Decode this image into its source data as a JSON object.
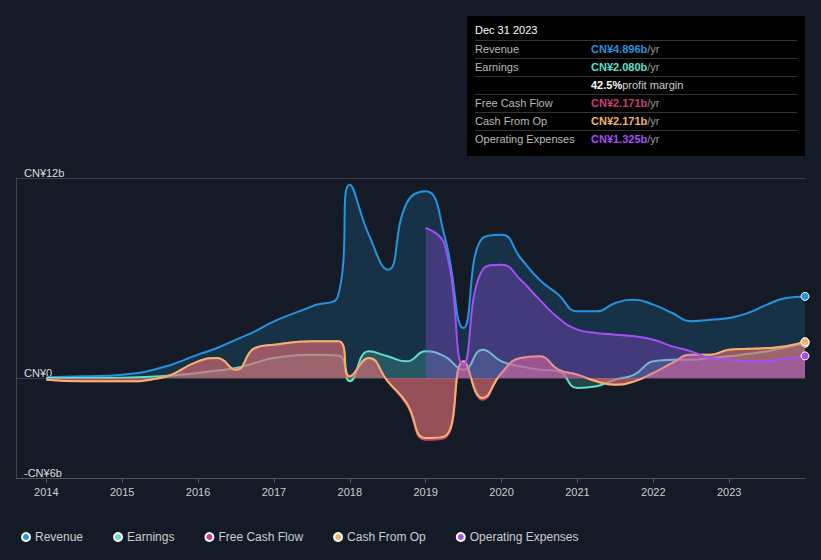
{
  "chart_data": {
    "type": "line",
    "x": [
      2014,
      2014.5,
      2015,
      2015.5,
      2016,
      2016.25,
      2016.5,
      2016.75,
      2017,
      2017.5,
      2017.85,
      2018,
      2018.25,
      2018.5,
      2018.75,
      2019,
      2019.25,
      2019.5,
      2019.75,
      2020,
      2020.25,
      2020.5,
      2020.75,
      2021,
      2021.25,
      2021.5,
      2021.75,
      2022,
      2022.25,
      2022.5,
      2022.75,
      2023,
      2023.25,
      2023.5,
      2023.75,
      2024
    ],
    "series": [
      {
        "name": "Revenue",
        "color": "#2394df",
        "values": [
          0.05,
          0.1,
          0.2,
          0.6,
          1.4,
          1.8,
          2.3,
          2.8,
          3.4,
          4.3,
          5.0,
          11.6,
          8.6,
          6.5,
          10.5,
          11.2,
          8.5,
          3.0,
          8.4,
          8.6,
          7.2,
          5.9,
          5.0,
          4.0,
          4.0,
          4.5,
          4.7,
          4.4,
          3.9,
          3.4,
          3.5,
          3.6,
          3.9,
          4.4,
          4.8,
          4.896
        ]
      },
      {
        "name": "Earnings",
        "color": "#5fe0c8",
        "values": [
          0,
          0,
          0.02,
          0.1,
          0.3,
          0.45,
          0.6,
          0.9,
          1.2,
          1.4,
          1.35,
          -0.2,
          1.6,
          1.3,
          1.0,
          1.6,
          1.3,
          0.5,
          1.7,
          1.0,
          0.7,
          0.5,
          0.4,
          -0.6,
          -0.5,
          -0.1,
          0.2,
          1.0,
          1.1,
          1.1,
          1.2,
          1.3,
          1.45,
          1.6,
          1.85,
          2.08
        ]
      },
      {
        "name": "Free Cash Flow",
        "color": "#c93f79",
        "values": [
          -0.1,
          -0.2,
          -0.2,
          0.0,
          1.0,
          1.2,
          0.5,
          1.8,
          2.0,
          2.2,
          2.2,
          0.1,
          1.2,
          -0.2,
          -1.6,
          -3.7,
          -3.6,
          1.0,
          -1.3,
          0.3,
          1.2,
          1.3,
          0.5,
          0.2,
          -0.2,
          -0.4,
          -0.2,
          0.3,
          0.9,
          1.4,
          1.4,
          1.7,
          1.75,
          1.8,
          1.9,
          2.171
        ]
      },
      {
        "name": "Cash From Op",
        "color": "#f2b46a",
        "values": [
          -0.1,
          -0.2,
          -0.2,
          0.0,
          1.0,
          1.2,
          0.5,
          1.8,
          2.0,
          2.2,
          2.2,
          0.1,
          1.2,
          -0.2,
          -1.5,
          -3.6,
          -3.5,
          1.0,
          -1.2,
          0.3,
          1.2,
          1.3,
          0.5,
          0.2,
          -0.2,
          -0.4,
          -0.2,
          0.3,
          0.9,
          1.4,
          1.4,
          1.7,
          1.75,
          1.8,
          1.9,
          2.171
        ]
      },
      {
        "name": "Operating Expenses",
        "color": "#a64ef5",
        "values": [
          null,
          null,
          null,
          null,
          null,
          null,
          null,
          null,
          null,
          null,
          null,
          null,
          null,
          null,
          null,
          9.0,
          8.0,
          0.8,
          6.5,
          6.8,
          5.9,
          4.7,
          3.6,
          2.9,
          2.7,
          2.6,
          2.5,
          2.3,
          1.9,
          1.6,
          1.2,
          1.1,
          1.0,
          1.0,
          1.15,
          1.325
        ]
      }
    ],
    "xlim": [
      2013.6,
      2024
    ],
    "xticks": [
      2014,
      2015,
      2016,
      2017,
      2018,
      2019,
      2020,
      2021,
      2022,
      2023
    ],
    "ylim": [
      -6,
      12
    ],
    "yticks": [
      {
        "value": -6,
        "label": "-CN¥6b"
      },
      {
        "value": 0,
        "label": "CN¥0"
      },
      {
        "value": 12,
        "label": "CN¥12b"
      }
    ],
    "grid": true,
    "legend": "bottom",
    "annotation": {
      "title": "Dec 31 2023",
      "rows": [
        {
          "label": "Revenue",
          "value": "CN¥4.896b",
          "unit": "/yr"
        },
        {
          "label": "Earnings",
          "value": "CN¥2.080b",
          "unit": "/yr"
        },
        {
          "margin": "42.5%",
          "text": "profit margin"
        },
        {
          "label": "Free Cash Flow",
          "value": "CN¥2.171b",
          "unit": "/yr"
        },
        {
          "label": "Cash From Op",
          "value": "CN¥2.171b",
          "unit": "/yr"
        },
        {
          "label": "Operating Expenses",
          "value": "CN¥1.325b",
          "unit": "/yr"
        }
      ]
    }
  }
}
